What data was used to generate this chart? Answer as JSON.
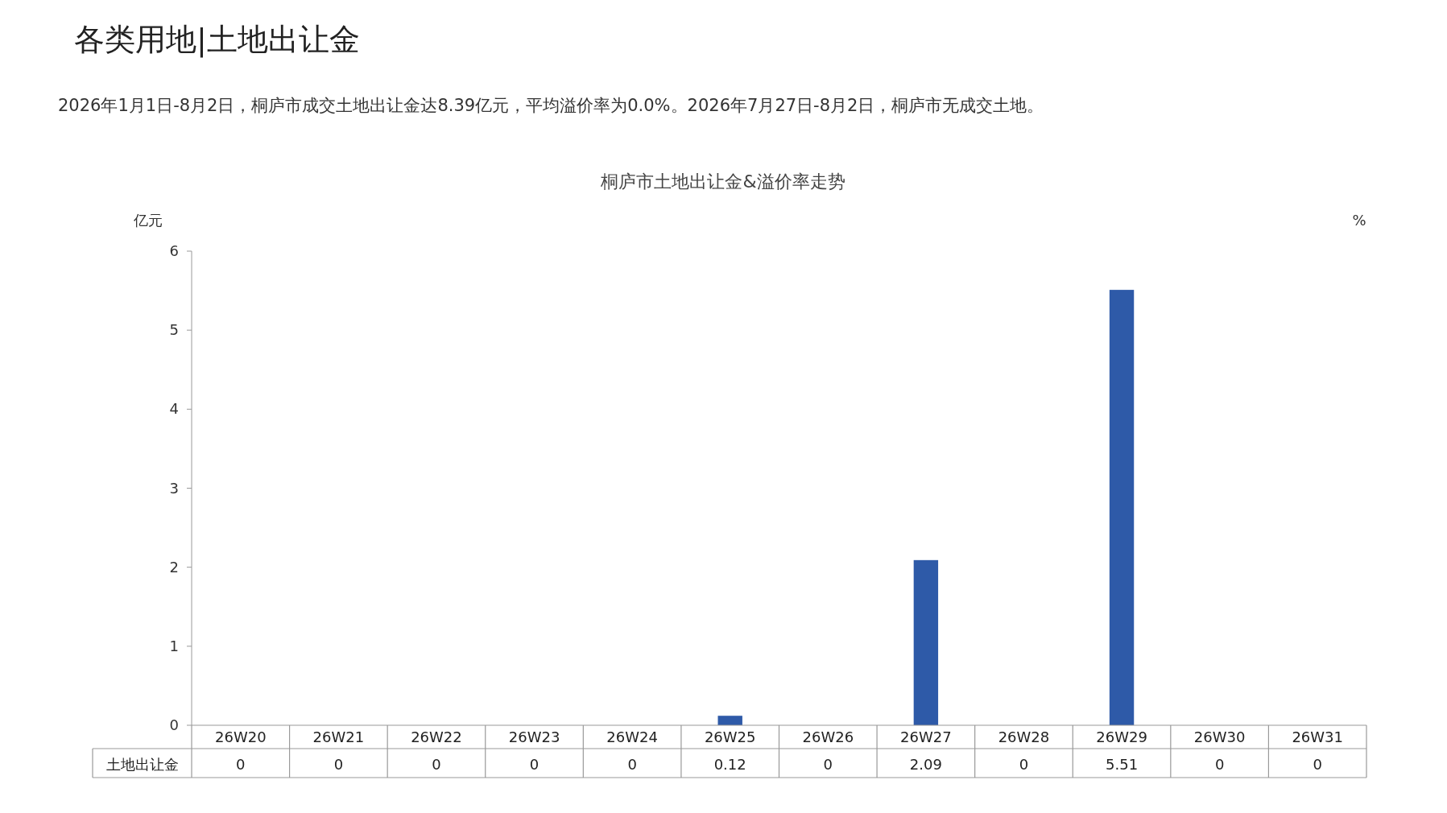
{
  "chart_data": {
    "type": "bar",
    "title": "桐庐市土地出让金&溢价率走势",
    "ylabel": "亿元",
    "y2label": "%",
    "annotations": [
      "各类用地|土地出让金",
      "2026年1月1日-8月2日，桐庐市成交土地出让金达8.39亿元，平均溢价率为0.0%。2026年7月27日-8月2日，桐庐市无成交土地。"
    ],
    "categories": [
      "26W20",
      "26W21",
      "26W22",
      "26W23",
      "26W24",
      "26W25",
      "26W26",
      "26W27",
      "26W28",
      "26W29",
      "26W30",
      "26W31"
    ],
    "series": [
      {
        "name": "土地出让金",
        "color": "#2e5aa8",
        "values": [
          0,
          0,
          0,
          0,
          0,
          0.12,
          0,
          2.09,
          0,
          5.51,
          0,
          0
        ]
      }
    ],
    "ylim": [
      0,
      6
    ],
    "yticks": [
      0,
      1,
      2,
      3,
      4,
      5,
      6
    ],
    "data_labels": true,
    "grid": false
  }
}
